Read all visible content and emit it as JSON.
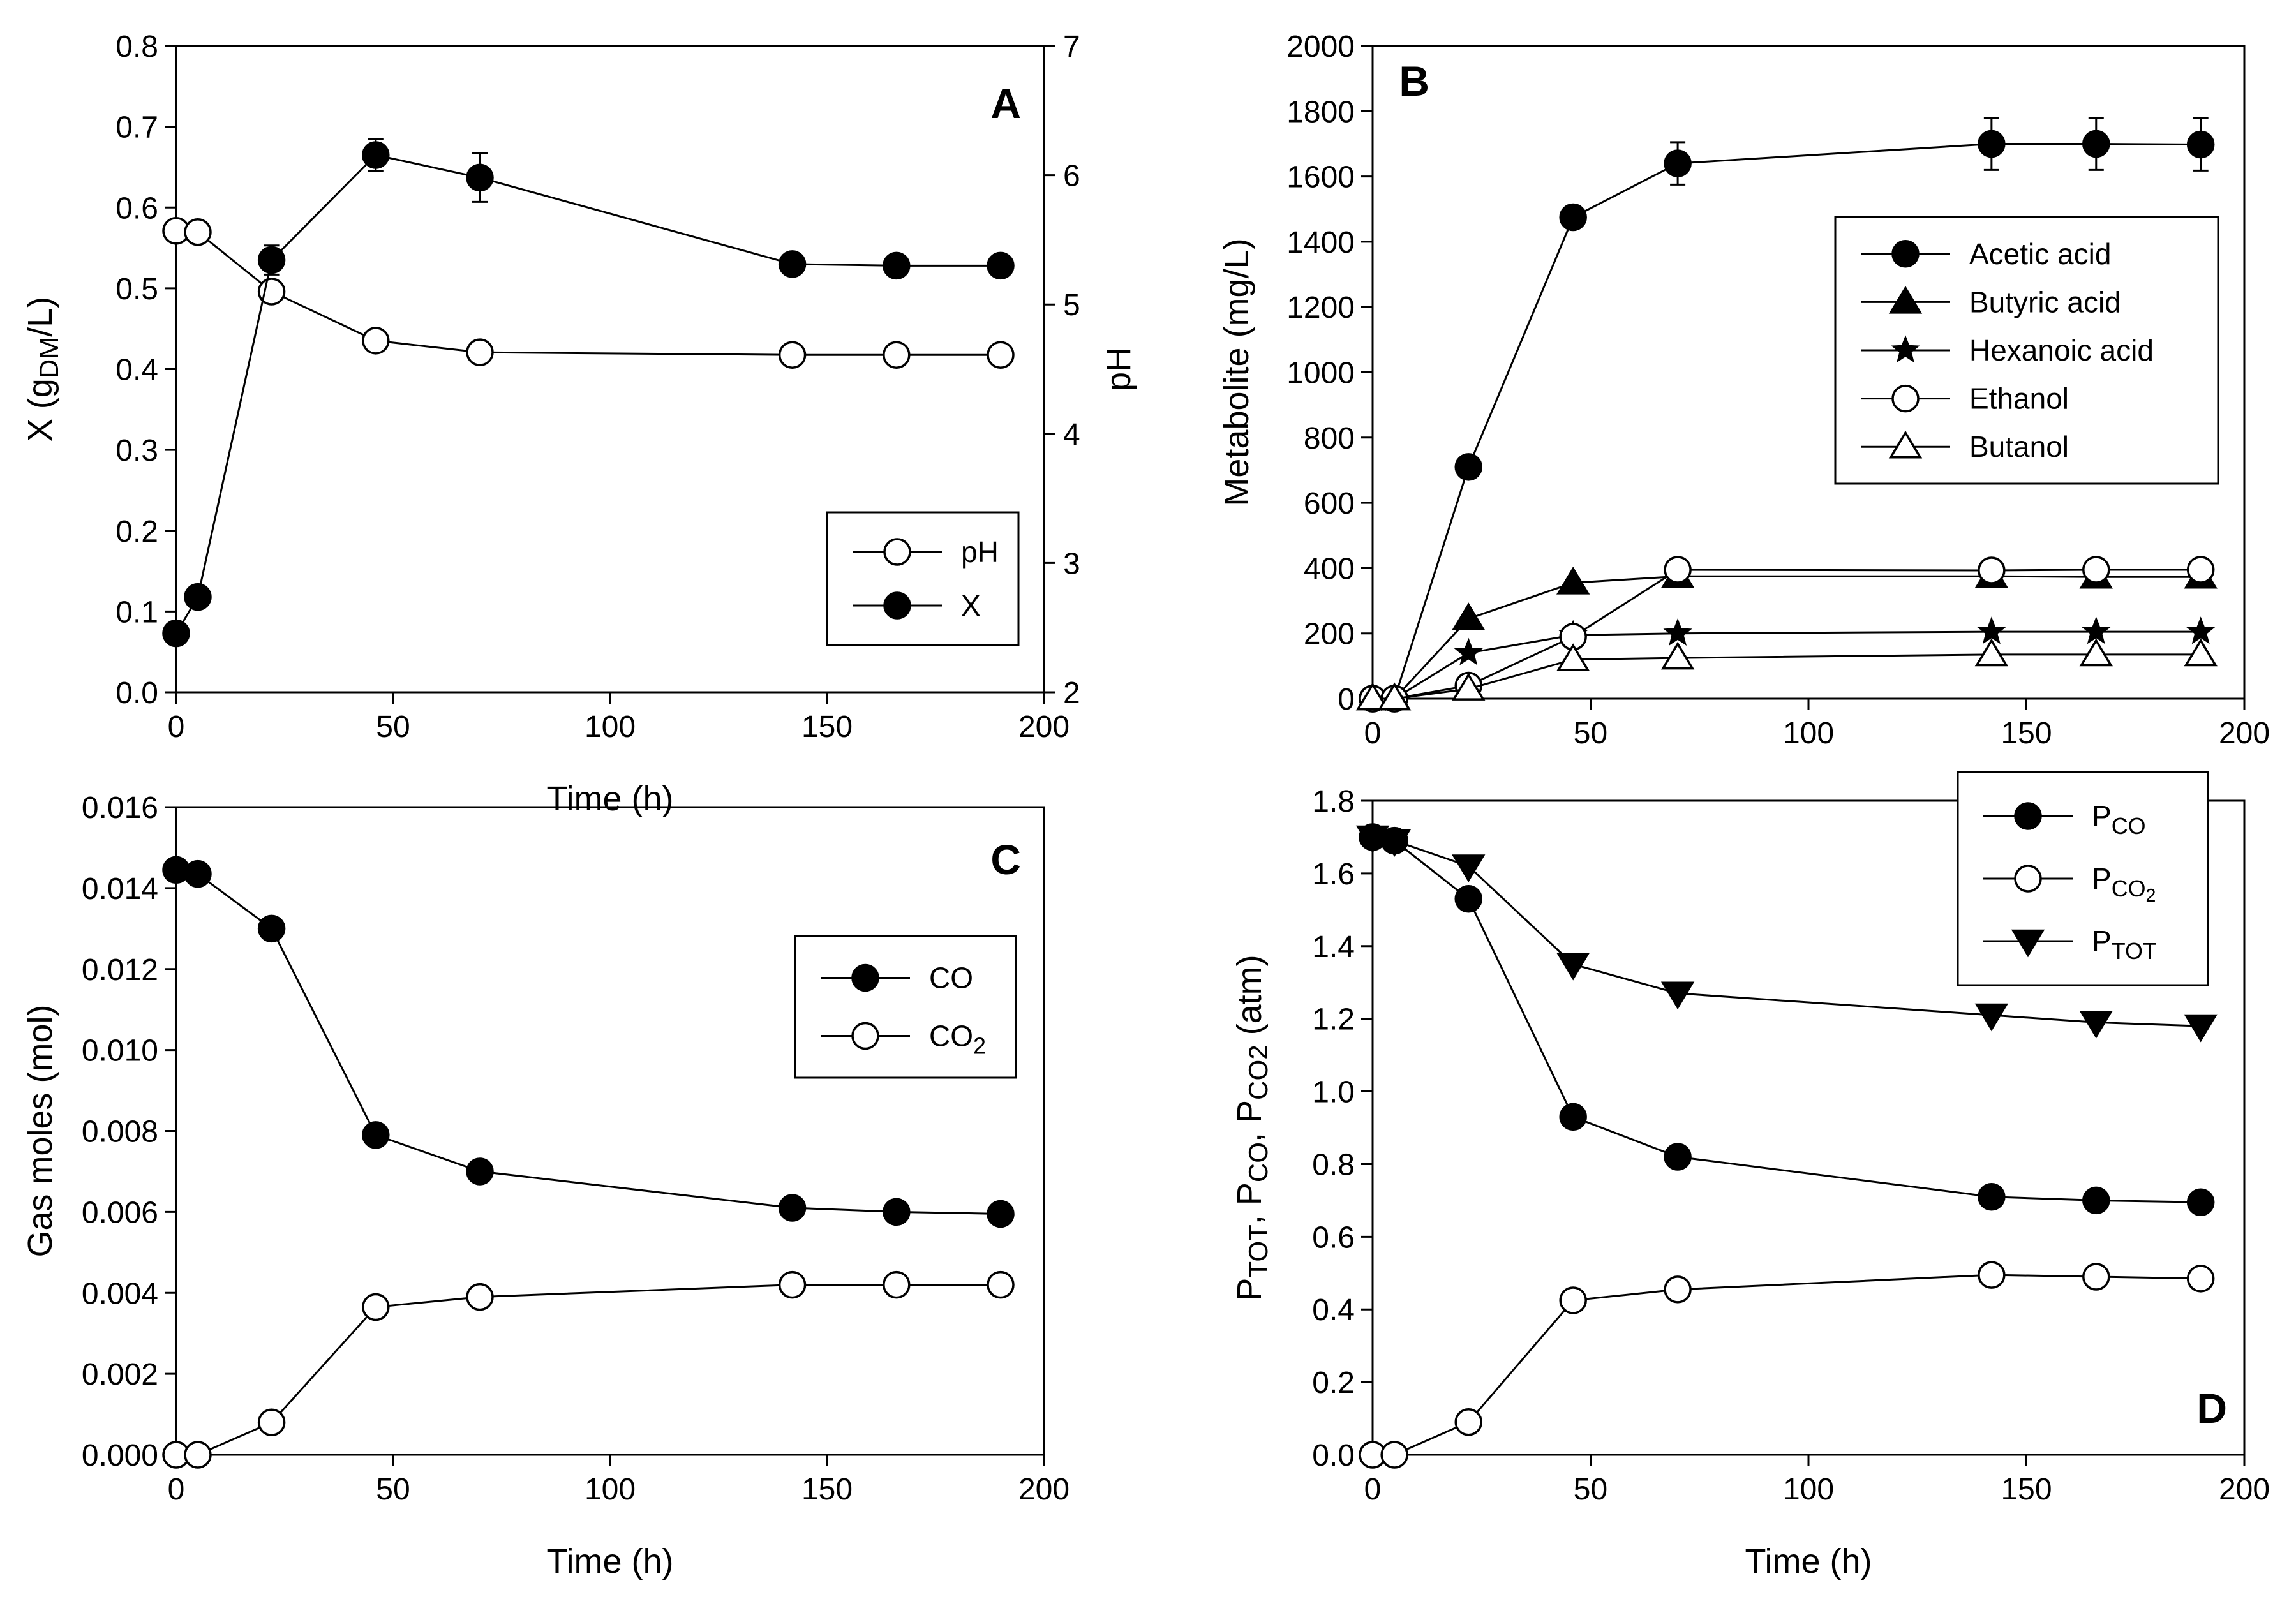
{
  "chart_data": [
    {
      "panel": "A",
      "type": "line",
      "xlabel": "Time (h)",
      "ylabel": "X (gDM/L)",
      "ylabel_parts": [
        "X (g",
        "DM",
        "/L)"
      ],
      "y2label": "pH",
      "xlim": [
        0,
        200
      ],
      "ylim": [
        0,
        0.8
      ],
      "y2lim": [
        2,
        7
      ],
      "xticks": [
        "0",
        "50",
        "100",
        "150",
        "200"
      ],
      "yticks": [
        "0.0",
        "0.1",
        "0.2",
        "0.3",
        "0.4",
        "0.5",
        "0.6",
        "0.7",
        "0.8"
      ],
      "y2ticks": [
        "2",
        "3",
        "4",
        "5",
        "6",
        "7"
      ],
      "legend_position": "bottom-right",
      "series": [
        {
          "name": "pH",
          "axis": "right",
          "marker": "circle-open",
          "x": [
            0,
            5,
            22,
            46,
            70,
            142,
            166,
            190
          ],
          "y": [
            5.57,
            5.56,
            5.1,
            4.72,
            4.63,
            4.61,
            4.61,
            4.61
          ]
        },
        {
          "name": "X",
          "axis": "left",
          "marker": "circle-filled",
          "x": [
            0,
            5,
            22,
            46,
            70,
            142,
            166,
            190
          ],
          "y": [
            0.073,
            0.118,
            0.535,
            0.665,
            0.637,
            0.53,
            0.528,
            0.528
          ],
          "err": [
            0,
            0,
            0.018,
            0.02,
            0.03,
            0,
            0,
            0
          ]
        }
      ]
    },
    {
      "panel": "B",
      "type": "line",
      "xlabel": "",
      "ylabel": "Metabolite (mg/L)",
      "xlim": [
        0,
        200
      ],
      "ylim": [
        0,
        2000
      ],
      "xticks": [
        "0",
        "50",
        "100",
        "150",
        "200"
      ],
      "yticks": [
        "0",
        "200",
        "400",
        "600",
        "800",
        "1000",
        "1200",
        "1400",
        "1600",
        "1800",
        "2000"
      ],
      "legend_position": "top-right",
      "series": [
        {
          "name": "Acetic acid",
          "marker": "circle-filled",
          "x": [
            0,
            5,
            22,
            46,
            70,
            142,
            166,
            190
          ],
          "y": [
            0,
            0,
            710,
            1475,
            1640,
            1700,
            1700,
            1698
          ],
          "err": [
            0,
            0,
            0,
            0,
            65,
            80,
            80,
            80
          ]
        },
        {
          "name": "Butyric acid",
          "marker": "triangle-up-filled",
          "x": [
            0,
            5,
            22,
            46,
            70,
            142,
            166,
            190
          ],
          "y": [
            0,
            0,
            245,
            355,
            375,
            375,
            373,
            373
          ]
        },
        {
          "name": "Hexanoic acid",
          "marker": "star-filled",
          "x": [
            0,
            5,
            22,
            46,
            70,
            142,
            166,
            190
          ],
          "y": [
            0,
            0,
            140,
            195,
            200,
            205,
            205,
            205
          ]
        },
        {
          "name": "Ethanol",
          "marker": "circle-open",
          "x": [
            0,
            5,
            22,
            46,
            70,
            142,
            166,
            190
          ],
          "y": [
            0,
            0,
            40,
            190,
            395,
            393,
            395,
            395
          ]
        },
        {
          "name": "Butanol",
          "marker": "triangle-up-open",
          "x": [
            0,
            5,
            22,
            46,
            70,
            142,
            166,
            190
          ],
          "y": [
            0,
            0,
            30,
            120,
            125,
            135,
            135,
            135
          ]
        }
      ]
    },
    {
      "panel": "C",
      "type": "line",
      "xlabel": "Time (h)",
      "ylabel": "Gas moles (mol)",
      "xlim": [
        0,
        200
      ],
      "ylim": [
        0,
        0.016
      ],
      "xticks": [
        "0",
        "50",
        "100",
        "150",
        "200"
      ],
      "yticks": [
        "0.000",
        "0.002",
        "0.004",
        "0.006",
        "0.008",
        "0.010",
        "0.012",
        "0.014",
        "0.016"
      ],
      "legend_position": "middle-right",
      "series": [
        {
          "name": "CO",
          "marker": "circle-filled",
          "x": [
            0,
            5,
            22,
            46,
            70,
            142,
            166,
            190
          ],
          "y": [
            0.01445,
            0.01435,
            0.013,
            0.0079,
            0.007,
            0.0061,
            0.006,
            0.00595
          ]
        },
        {
          "name": "CO2",
          "legend_parts": [
            "CO",
            "2"
          ],
          "marker": "circle-open",
          "x": [
            0,
            5,
            22,
            46,
            70,
            142,
            166,
            190
          ],
          "y": [
            0,
            0,
            0.0008,
            0.00365,
            0.0039,
            0.0042,
            0.0042,
            0.0042
          ]
        }
      ]
    },
    {
      "panel": "D",
      "type": "line",
      "xlabel": "Time (h)",
      "ylabel": "PTOT, PCO, PCO2 (atm)",
      "ylabel_parts": [
        {
          "t": "P",
          "sub": false
        },
        {
          "t": "TOT",
          "sub": true
        },
        {
          "t": ", P",
          "sub": false
        },
        {
          "t": "CO",
          "sub": true
        },
        {
          "t": ", P",
          "sub": false
        },
        {
          "t": "CO",
          "sub": true
        },
        {
          "t": "2",
          "sub": true
        },
        {
          "t": " (atm)",
          "sub": false
        }
      ],
      "xlim": [
        0,
        200
      ],
      "ylim": [
        0,
        1.8
      ],
      "xticks": [
        "0",
        "50",
        "100",
        "150",
        "200"
      ],
      "yticks": [
        "0.0",
        "0.2",
        "0.4",
        "0.6",
        "0.8",
        "1.0",
        "1.2",
        "1.4",
        "1.6",
        "1.8"
      ],
      "legend_position": "top-right",
      "series": [
        {
          "name": "PCO",
          "legend_parts": [
            "P",
            "CO"
          ],
          "marker": "circle-filled",
          "x": [
            0,
            5,
            22,
            46,
            70,
            142,
            166,
            190
          ],
          "y": [
            1.7,
            1.69,
            1.53,
            0.93,
            0.82,
            0.71,
            0.7,
            0.695
          ]
        },
        {
          "name": "PCO2",
          "legend_parts": [
            "P",
            "CO2"
          ],
          "marker": "circle-open",
          "x": [
            0,
            5,
            22,
            46,
            70,
            142,
            166,
            190
          ],
          "y": [
            0,
            0,
            0.09,
            0.425,
            0.455,
            0.495,
            0.49,
            0.485
          ]
        },
        {
          "name": "PTOT",
          "legend_parts": [
            "P",
            "TOT"
          ],
          "marker": "triangle-down-filled",
          "x": [
            0,
            5,
            22,
            46,
            70,
            142,
            166,
            190
          ],
          "y": [
            1.7,
            1.69,
            1.62,
            1.35,
            1.27,
            1.21,
            1.19,
            1.18
          ]
        }
      ]
    }
  ]
}
